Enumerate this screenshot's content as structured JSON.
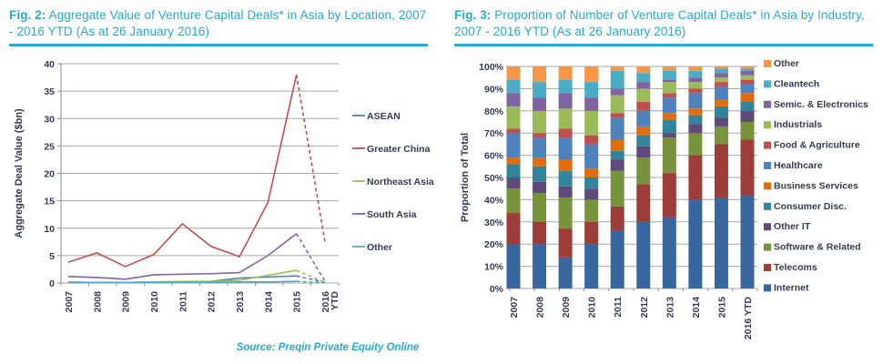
{
  "fig2": {
    "title_prefix": "Fig. 2:",
    "title_text": " Aggregate Value of Venture Capital Deals* in Asia by Location, 2007 - 2016 YTD (As at 26 January 2016)"
  },
  "fig3": {
    "title_prefix": "Fig. 3:",
    "title_text": " Proportion of Number of Venture Capital Deals* in Asia by Industry, 2007 - 2016 YTD (As at 26 January 2016)"
  },
  "source": "Source: Preqin Private Equity Online",
  "colors": {
    "accent": "#29A9CF",
    "axis_text": "#343A52",
    "gridline": "#A6A6A6",
    "axis_line": "#8C8C8C"
  },
  "chart_data": [
    {
      "type": "line",
      "title": "Aggregate Value of Venture Capital Deals in Asia by Location",
      "ylabel": "Aggregate Deal Value ($bn)",
      "xlabel": "",
      "ylim": [
        0,
        40
      ],
      "ytick_step": 5,
      "grid": true,
      "legend_position": "right",
      "last_segment_dashed": true,
      "categories": [
        "2007",
        "2008",
        "2009",
        "2010",
        "2011",
        "2012",
        "2013",
        "2014",
        "2015",
        "2016 YTD"
      ],
      "series": [
        {
          "name": "ASEAN",
          "color": "#4F81BD",
          "values": [
            0.1,
            0.1,
            0.1,
            0.2,
            0.2,
            0.3,
            0.9,
            1.1,
            1.3,
            0.1
          ]
        },
        {
          "name": "Greater China",
          "color": "#C0504D",
          "values": [
            3.8,
            5.5,
            3.0,
            5.2,
            10.8,
            6.7,
            4.8,
            14.7,
            38.0,
            7.5
          ]
        },
        {
          "name": "Northeast Asia",
          "color": "#9BBB59",
          "values": [
            0.2,
            0.1,
            0.1,
            0.2,
            0.3,
            0.3,
            0.5,
            1.4,
            2.3,
            0.1
          ]
        },
        {
          "name": "South Asia",
          "color": "#8064A2",
          "values": [
            1.2,
            1.0,
            0.7,
            1.5,
            1.6,
            1.7,
            1.9,
            5.0,
            9.0,
            0.3
          ]
        },
        {
          "name": "Other",
          "color": "#4BACC6",
          "values": [
            0.1,
            0.1,
            0.1,
            0.1,
            0.1,
            0.1,
            0.2,
            0.2,
            0.3,
            0.05
          ]
        }
      ]
    },
    {
      "type": "bar",
      "subtype": "stacked-100",
      "title": "Proportion of Number of Venture Capital Deals in Asia by Industry",
      "ylabel": "Proportion of Total",
      "xlabel": "",
      "ylim": [
        0,
        100
      ],
      "ytick_step": 10,
      "ytick_suffix": "%",
      "grid": true,
      "legend_position": "right",
      "categories": [
        "2007",
        "2008",
        "2009",
        "2010",
        "2011",
        "2012",
        "2013",
        "2014",
        "2015",
        "2016 YTD"
      ],
      "series": [
        {
          "name": "Internet",
          "color": "#38669E",
          "values": [
            20,
            20,
            14,
            20,
            26,
            30,
            32,
            40,
            41,
            42
          ]
        },
        {
          "name": "Telecoms",
          "color": "#9E3D38",
          "values": [
            14,
            10,
            13,
            10,
            11,
            17,
            20,
            20,
            24,
            25
          ]
        },
        {
          "name": "Software & Related",
          "color": "#77933C",
          "values": [
            11,
            13,
            14,
            10,
            16,
            12,
            16,
            10,
            8,
            8
          ]
        },
        {
          "name": "Other IT",
          "color": "#604A7B",
          "values": [
            5,
            5,
            5,
            5,
            5,
            5,
            2,
            4,
            4,
            5
          ]
        },
        {
          "name": "Consumer Disc.",
          "color": "#31849B",
          "values": [
            6,
            7,
            7,
            5,
            4,
            5,
            6,
            4,
            5,
            4
          ]
        },
        {
          "name": "Business Services",
          "color": "#E36C0A",
          "values": [
            3,
            4,
            5,
            4,
            5,
            4,
            3,
            3,
            3,
            4
          ]
        },
        {
          "name": "Healthcare",
          "color": "#4F81BD",
          "values": [
            11,
            9,
            10,
            11,
            10,
            7,
            7,
            7,
            6,
            4
          ]
        },
        {
          "name": "Food & Agriculture",
          "color": "#C0504D",
          "values": [
            2,
            2,
            4,
            4,
            2,
            4,
            2,
            2,
            2,
            2
          ]
        },
        {
          "name": "Industrials",
          "color": "#9BBB59",
          "values": [
            10,
            10,
            9,
            11,
            8,
            6,
            5,
            3,
            2,
            2
          ]
        },
        {
          "name": "Semic. & Electronics",
          "color": "#8064A2",
          "values": [
            6,
            6,
            7,
            6,
            3,
            3,
            1,
            2,
            2,
            2
          ]
        },
        {
          "name": "Cleantech",
          "color": "#4BACC6",
          "values": [
            6,
            7,
            6,
            7,
            8,
            4,
            4,
            3,
            2,
            1
          ]
        },
        {
          "name": "Other",
          "color": "#F79646",
          "values": [
            6,
            7,
            6,
            7,
            2,
            3,
            2,
            2,
            1,
            1
          ]
        }
      ],
      "legend_order_note": "legend displayed top-to-bottom is reverse of stacking order"
    }
  ]
}
